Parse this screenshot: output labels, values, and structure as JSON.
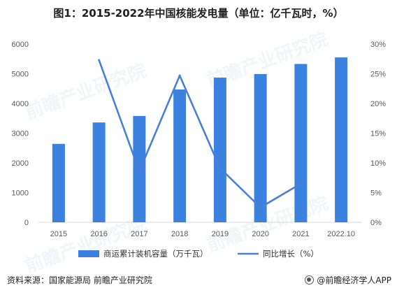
{
  "title": "图1：2015-2022年中国核能发电量（单位：亿千瓦时，%）",
  "footer": {
    "source": "资料来源：国家能源局 前瞻产业研究院",
    "brand": "@前瞻经济学人APP"
  },
  "watermark": "前瞻产业研究院",
  "chart_data": {
    "type": "bar",
    "categories": [
      "2015",
      "2016",
      "2017",
      "2018",
      "2019",
      "2020",
      "2021",
      "2022.10"
    ],
    "series": [
      {
        "name": "商运累计装机容量（万千瓦）",
        "type": "bar",
        "axis": "left",
        "color": "#3b82e0",
        "values": [
          2640,
          3360,
          3580,
          4470,
          4870,
          4990,
          5330,
          5550
        ]
      },
      {
        "name": "同比增长（%）",
        "type": "line",
        "axis": "right",
        "color": "#4a7fd8",
        "values": [
          null,
          27.3,
          8.6,
          24.7,
          9.1,
          2.5,
          6.5,
          null
        ]
      }
    ],
    "y_left": {
      "min": 0,
      "max": 6000,
      "ticks": [
        0,
        1000,
        2000,
        3000,
        4000,
        5000,
        6000
      ]
    },
    "y_right": {
      "min": 0,
      "max": 30,
      "ticks": [
        "0%",
        "5%",
        "10%",
        "15%",
        "20%",
        "25%",
        "30%"
      ]
    },
    "grid": false,
    "legend_position": "bottom"
  }
}
